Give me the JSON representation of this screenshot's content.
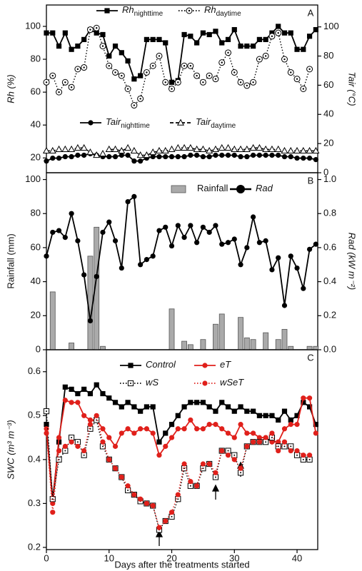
{
  "chart_data": [
    {
      "type": "line",
      "panel_label": "A",
      "xlim": [
        0,
        43.3
      ],
      "x": [
        0,
        1,
        2,
        3,
        4,
        5,
        6,
        7,
        8,
        9,
        10,
        11,
        12,
        13,
        14,
        15,
        16,
        17,
        18,
        19,
        20,
        21,
        22,
        23,
        24,
        25,
        26,
        27,
        28,
        29,
        30,
        31,
        32,
        33,
        34,
        35,
        36,
        37,
        38,
        39,
        40,
        41,
        42,
        43
      ],
      "ylabel": "Rh (%)",
      "y2label": "Tair (°C)",
      "ylim": [
        11,
        113
      ],
      "yticks": [
        20,
        40,
        60,
        80,
        100
      ],
      "y2lim": [
        0,
        115
      ],
      "y2ticks": [
        0,
        20,
        40,
        60,
        80,
        100
      ],
      "series": [
        {
          "name": "Rh",
          "sub": "nighttime",
          "color": "#000",
          "marker": "square",
          "dash": false,
          "axis": "y",
          "values": [
            96,
            96,
            88,
            96,
            86,
            88,
            92,
            98,
            96,
            95,
            82,
            88,
            84,
            79,
            68,
            70,
            92,
            92,
            92,
            90,
            66,
            67,
            95,
            94,
            90,
            96,
            95,
            97,
            90,
            92,
            98,
            88,
            88,
            88,
            92,
            92,
            96,
            100,
            96,
            96,
            86,
            86,
            94,
            98
          ]
        },
        {
          "name": "Rh",
          "sub": "daytime",
          "color": "#000",
          "marker": "circle-dot",
          "dash": true,
          "axis": "y",
          "values": [
            66,
            70,
            60,
            66,
            63,
            74,
            75,
            98,
            99,
            88,
            76,
            72,
            70,
            62,
            52,
            56,
            72,
            76,
            82,
            66,
            62,
            66,
            76,
            76,
            70,
            66,
            70,
            68,
            78,
            84,
            72,
            66,
            64,
            66,
            80,
            82,
            94,
            96,
            80,
            72,
            68,
            62,
            74,
            null
          ]
        },
        {
          "name": "Tair",
          "sub": "nighttime",
          "color": "#000",
          "marker": "circle",
          "dash": false,
          "axis": "y2",
          "values": [
            8,
            10,
            10,
            11,
            11,
            12,
            12,
            13,
            12,
            11,
            11,
            11,
            12,
            12,
            8,
            8,
            10,
            11,
            11,
            11,
            11,
            11,
            11,
            12,
            12,
            11,
            11,
            12,
            12,
            12,
            12,
            11,
            11,
            12,
            12,
            12,
            12,
            12,
            11,
            11,
            10,
            10,
            10,
            9
          ]
        },
        {
          "name": "Tair",
          "sub": "daytime",
          "color": "#000",
          "marker": "triangle-open",
          "dash": true,
          "axis": "y2",
          "values": [
            15,
            15,
            16,
            16,
            16,
            17,
            17,
            14,
            12,
            13,
            16,
            16,
            15,
            17,
            15,
            12,
            12,
            14,
            15,
            15,
            16,
            17,
            17,
            17,
            16,
            16,
            15,
            16,
            17,
            17,
            16,
            16,
            16,
            17,
            17,
            16,
            16,
            16,
            15,
            15,
            15,
            15,
            15,
            15
          ]
        }
      ]
    },
    {
      "type": "combo",
      "panel_label": "B",
      "xlim": [
        0,
        43.3
      ],
      "x": [
        0,
        1,
        2,
        3,
        4,
        5,
        6,
        7,
        8,
        9,
        10,
        11,
        12,
        13,
        14,
        15,
        16,
        17,
        18,
        19,
        20,
        21,
        22,
        23,
        24,
        25,
        26,
        27,
        28,
        29,
        30,
        31,
        32,
        33,
        34,
        35,
        36,
        37,
        38,
        39,
        40,
        41,
        42,
        43
      ],
      "ylabel": "Rainfall (mm)",
      "y2label": "Rad (kW m⁻²)",
      "ylim": [
        0,
        104
      ],
      "yticks": [
        0,
        20,
        40,
        60,
        80,
        100
      ],
      "y2lim": [
        0,
        1.04
      ],
      "y2ticks": [
        {
          "value": 0,
          "label": "0.0"
        },
        0.2,
        0.4,
        0.6,
        0.8,
        {
          "value": 1,
          "label": "1.0"
        }
      ],
      "series": [
        {
          "name": "Rainfall",
          "kind": "bar",
          "color": "#aaaaaa",
          "axis": "y",
          "values": [
            0,
            34,
            0,
            0,
            4,
            0,
            0,
            55,
            72,
            2,
            0,
            0,
            0,
            0,
            0,
            0,
            0,
            0,
            0,
            0,
            24,
            0,
            5,
            3,
            0,
            6,
            0,
            15,
            21,
            0,
            0,
            19,
            7,
            6,
            0,
            10,
            0,
            6,
            12,
            2,
            0,
            0,
            2,
            2
          ]
        },
        {
          "name": "Rad",
          "kind": "line",
          "color": "#000",
          "marker": "circle",
          "dash": false,
          "axis": "y2",
          "values": [
            0.55,
            0.69,
            0.7,
            0.66,
            0.8,
            0.64,
            0.44,
            0.17,
            0.43,
            0.69,
            0.75,
            0.64,
            0.48,
            0.87,
            0.9,
            0.5,
            0.53,
            0.55,
            0.7,
            0.72,
            0.61,
            0.73,
            0.66,
            0.73,
            0.63,
            0.72,
            0.69,
            0.73,
            0.62,
            0.63,
            0.65,
            0.5,
            0.6,
            0.78,
            0.63,
            0.64,
            0.47,
            0.54,
            0.26,
            0.55,
            0.48,
            0.36,
            0.59,
            0.62
          ]
        }
      ]
    },
    {
      "type": "line",
      "panel_label": "C",
      "xlim": [
        0,
        43.3
      ],
      "xticks": [
        0,
        10,
        20,
        30,
        40
      ],
      "xlabel": "Days after the treatments started",
      "x": [
        0,
        1,
        2,
        3,
        4,
        5,
        6,
        7,
        8,
        9,
        10,
        11,
        12,
        13,
        14,
        15,
        16,
        17,
        18,
        19,
        20,
        21,
        22,
        23,
        24,
        25,
        26,
        27,
        28,
        29,
        30,
        31,
        32,
        33,
        34,
        35,
        36,
        37,
        38,
        39,
        40,
        41,
        42,
        43
      ],
      "ylabel": "SWC (m³ m⁻³)",
      "ylim": [
        0.195,
        0.65
      ],
      "yticks": [
        0.2,
        0.3,
        0.4,
        0.5,
        0.6
      ],
      "series": [
        {
          "name": "Control",
          "color": "#000",
          "marker": "square",
          "dash": false,
          "axis": "y",
          "values": [
            0.48,
            0.31,
            0.44,
            0.565,
            0.56,
            0.55,
            0.56,
            0.55,
            0.57,
            0.55,
            0.54,
            0.53,
            0.52,
            0.53,
            0.52,
            0.51,
            0.52,
            0.52,
            0.44,
            0.46,
            0.48,
            0.5,
            0.52,
            0.53,
            0.53,
            0.53,
            0.52,
            0.51,
            0.53,
            0.52,
            0.51,
            0.52,
            0.51,
            0.51,
            0.5,
            0.5,
            0.5,
            0.49,
            0.51,
            0.49,
            0.5,
            0.53,
            0.52,
            0.48
          ]
        },
        {
          "name": "eT",
          "color": "#e0201b",
          "marker": "circle",
          "dash": false,
          "axis": "y",
          "values": [
            0.47,
            0.3,
            0.45,
            0.535,
            0.53,
            0.53,
            0.5,
            0.49,
            0.49,
            0.47,
            0.45,
            0.43,
            0.46,
            0.47,
            0.46,
            0.47,
            0.47,
            0.46,
            0.41,
            0.43,
            0.45,
            0.47,
            0.47,
            0.49,
            0.47,
            0.47,
            0.48,
            0.48,
            0.47,
            0.46,
            0.45,
            0.48,
            0.46,
            0.46,
            0.45,
            0.45,
            0.44,
            0.44,
            0.47,
            0.48,
            0.48,
            0.54,
            0.54,
            0.46
          ]
        },
        {
          "name": "wS",
          "color": "#000",
          "marker": "square-open",
          "dash": true,
          "axis": "y",
          "values": [
            0.51,
            0.31,
            0.4,
            0.42,
            0.45,
            0.44,
            0.41,
            0.47,
            0.49,
            0.43,
            0.4,
            0.38,
            0.36,
            0.33,
            0.32,
            0.305,
            0.3,
            0.295,
            0.24,
            0.26,
            0.27,
            0.31,
            0.38,
            0.34,
            0.34,
            0.38,
            0.39,
            0.36,
            0.42,
            0.42,
            0.41,
            0.37,
            0.43,
            0.44,
            0.44,
            0.44,
            0.45,
            0.43,
            0.43,
            0.43,
            0.41,
            0.4,
            0.4,
            null
          ]
        },
        {
          "name": "wSeT",
          "color": "#e0201b",
          "marker": "circle",
          "dash": true,
          "axis": "y",
          "values": [
            0.46,
            0.28,
            0.42,
            0.43,
            0.44,
            0.43,
            0.42,
            0.48,
            0.5,
            0.44,
            0.4,
            0.38,
            0.36,
            0.34,
            0.32,
            0.31,
            0.3,
            0.295,
            0.245,
            0.26,
            0.28,
            0.32,
            0.39,
            0.35,
            0.34,
            0.39,
            0.39,
            0.37,
            0.42,
            0.41,
            0.4,
            0.38,
            0.43,
            0.44,
            0.44,
            0.45,
            0.46,
            0.42,
            0.44,
            0.42,
            0.42,
            0.41,
            0.41,
            null
          ]
        }
      ]
    }
  ]
}
